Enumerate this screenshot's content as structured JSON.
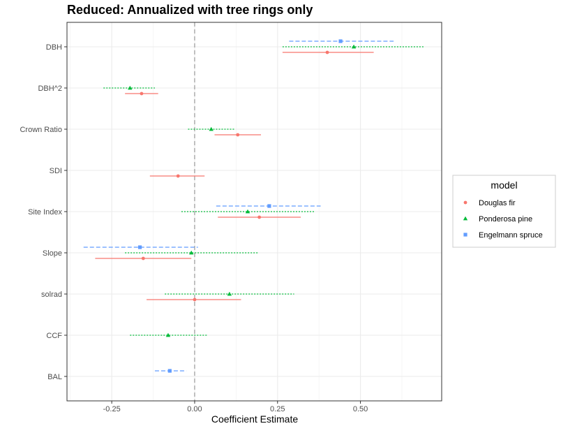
{
  "chart_data": {
    "type": "coefficient-plot",
    "title": "Reduced: Annualized with tree rings only",
    "xlabel": "Coefficient Estimate",
    "ylabel": "",
    "xlim": [
      -0.385,
      0.745
    ],
    "x_ticks": [
      -0.25,
      0.0,
      0.25,
      0.5
    ],
    "x_tick_labels": [
      "-0.25",
      "0.00",
      "0.25",
      "0.50"
    ],
    "reference_line": 0,
    "categories": [
      "DBH",
      "DBH^2",
      "Crown Ratio",
      "SDI",
      "Site Index",
      "Slope",
      "solrad",
      "CCF",
      "BAL"
    ],
    "grid": true,
    "legend": {
      "title": "model",
      "position": "right"
    },
    "series": [
      {
        "name": "Douglas fir",
        "color": "#F8766D",
        "marker": "circle",
        "linestyle": "solid",
        "points": [
          {
            "category": "DBH",
            "estimate": 0.4,
            "low": 0.265,
            "high": 0.54
          },
          {
            "category": "DBH^2",
            "estimate": -0.16,
            "low": -0.21,
            "high": -0.11
          },
          {
            "category": "Crown Ratio",
            "estimate": 0.13,
            "low": 0.06,
            "high": 0.2
          },
          {
            "category": "SDI",
            "estimate": -0.05,
            "low": -0.135,
            "high": 0.03
          },
          {
            "category": "Site Index",
            "estimate": 0.195,
            "low": 0.07,
            "high": 0.32
          },
          {
            "category": "Slope",
            "estimate": -0.155,
            "low": -0.3,
            "high": -0.01
          },
          {
            "category": "solrad",
            "estimate": 0.0,
            "low": -0.145,
            "high": 0.14
          }
        ]
      },
      {
        "name": "Ponderosa pine",
        "color": "#00BA38",
        "marker": "triangle",
        "linestyle": "dotted",
        "points": [
          {
            "category": "DBH",
            "estimate": 0.48,
            "low": 0.265,
            "high": 0.69
          },
          {
            "category": "DBH^2",
            "estimate": -0.195,
            "low": -0.275,
            "high": -0.12
          },
          {
            "category": "Crown Ratio",
            "estimate": 0.05,
            "low": -0.02,
            "high": 0.12
          },
          {
            "category": "Site Index",
            "estimate": 0.16,
            "low": -0.04,
            "high": 0.36
          },
          {
            "category": "Slope",
            "estimate": -0.01,
            "low": -0.21,
            "high": 0.19
          },
          {
            "category": "solrad",
            "estimate": 0.105,
            "low": -0.09,
            "high": 0.3
          },
          {
            "category": "CCF",
            "estimate": -0.08,
            "low": -0.195,
            "high": 0.04
          }
        ]
      },
      {
        "name": "Engelmann spruce",
        "color": "#619CFF",
        "marker": "square",
        "linestyle": "dashed",
        "points": [
          {
            "category": "DBH",
            "estimate": 0.44,
            "low": 0.285,
            "high": 0.6
          },
          {
            "category": "Site Index",
            "estimate": 0.225,
            "low": 0.065,
            "high": 0.38
          },
          {
            "category": "Slope",
            "estimate": -0.165,
            "low": -0.335,
            "high": 0.01
          },
          {
            "category": "BAL",
            "estimate": -0.075,
            "low": -0.12,
            "high": -0.025
          }
        ]
      }
    ]
  }
}
